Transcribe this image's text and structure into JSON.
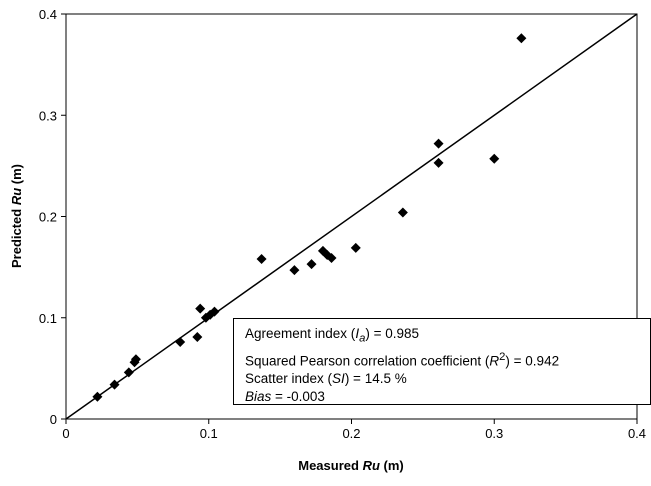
{
  "chart_data": {
    "type": "scatter",
    "xlabel_prefix": "Measured ",
    "xlabel_var": "Ru",
    "xlabel_unit": " (m)",
    "ylabel_prefix": "Predicted ",
    "ylabel_var": "Ru",
    "ylabel_unit": " (m)",
    "xlim": [
      0,
      0.4
    ],
    "ylim": [
      0,
      0.4
    ],
    "xticks": [
      "0",
      "0.1",
      "0.2",
      "0.3",
      "0.4"
    ],
    "yticks": [
      "0",
      "0.1",
      "0.2",
      "0.3",
      "0.4"
    ],
    "grid": false,
    "marker": "diamond",
    "reference_line": {
      "type": "y=x",
      "from": [
        0,
        0
      ],
      "to": [
        0.4,
        0.4
      ]
    },
    "points": [
      {
        "x": 0.022,
        "y": 0.022
      },
      {
        "x": 0.034,
        "y": 0.034
      },
      {
        "x": 0.044,
        "y": 0.046
      },
      {
        "x": 0.048,
        "y": 0.056
      },
      {
        "x": 0.049,
        "y": 0.059
      },
      {
        "x": 0.08,
        "y": 0.076
      },
      {
        "x": 0.092,
        "y": 0.081
      },
      {
        "x": 0.094,
        "y": 0.109
      },
      {
        "x": 0.098,
        "y": 0.1
      },
      {
        "x": 0.101,
        "y": 0.103
      },
      {
        "x": 0.104,
        "y": 0.106
      },
      {
        "x": 0.137,
        "y": 0.158
      },
      {
        "x": 0.16,
        "y": 0.147
      },
      {
        "x": 0.172,
        "y": 0.153
      },
      {
        "x": 0.18,
        "y": 0.166
      },
      {
        "x": 0.183,
        "y": 0.162
      },
      {
        "x": 0.186,
        "y": 0.159
      },
      {
        "x": 0.203,
        "y": 0.169
      },
      {
        "x": 0.236,
        "y": 0.204
      },
      {
        "x": 0.261,
        "y": 0.253
      },
      {
        "x": 0.261,
        "y": 0.272
      },
      {
        "x": 0.3,
        "y": 0.257
      },
      {
        "x": 0.319,
        "y": 0.376
      }
    ],
    "annotation": {
      "agreement_label": "Agreement index (",
      "agreement_sym": "I",
      "agreement_sub": "a",
      "agreement_value": ") = 0.985",
      "pearson_label": "Squared Pearson correlation coefficient (",
      "pearson_sym": "R",
      "pearson_sup": "2",
      "pearson_value": ") = 0.942",
      "scatter_label": "Scatter index (",
      "scatter_sym": "SI",
      "scatter_value": ") = 14.5 %",
      "bias_sym": "Bias",
      "bias_value": " = -0.003"
    }
  }
}
